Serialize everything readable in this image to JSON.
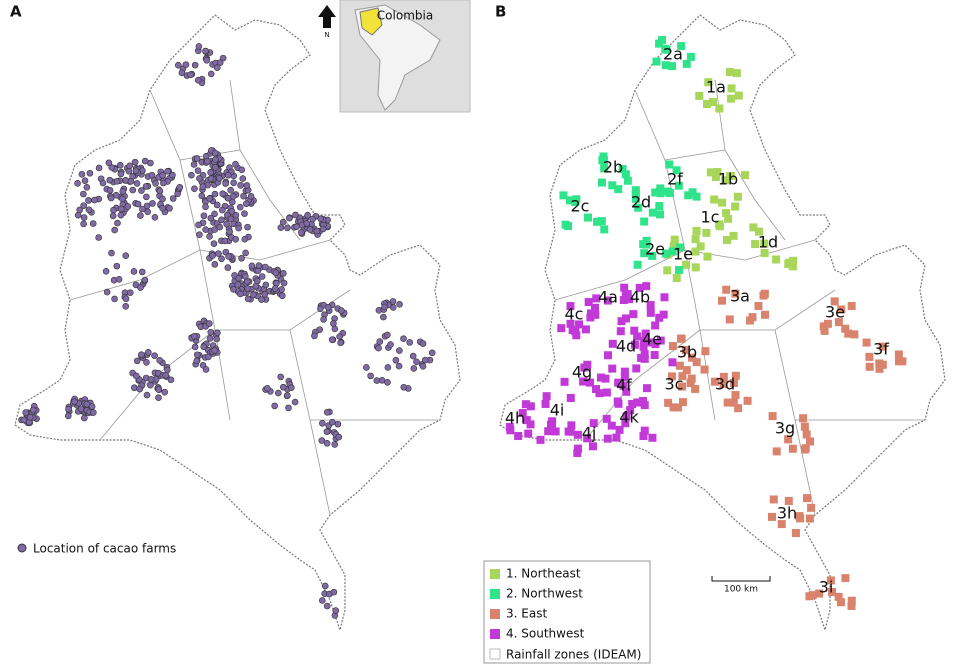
{
  "panel_a": {
    "label": "A",
    "inset_label": "Colombia",
    "north": "N",
    "legend": "Location of cacao farms"
  },
  "panel_b": {
    "label": "B",
    "scale": "100 km",
    "groups": [
      {
        "name": "1. Northeast",
        "color": "#a7d65a",
        "zones": [
          "1a",
          "1b",
          "1c",
          "1d",
          "1e"
        ]
      },
      {
        "name": "2. Northwest",
        "color": "#2fe38a",
        "zones": [
          "2a",
          "2b",
          "2c",
          "2d",
          "2e",
          "2f"
        ]
      },
      {
        "name": "3. East",
        "color": "#d9826c",
        "zones": [
          "3a",
          "3b",
          "3c",
          "3d",
          "3e",
          "3f",
          "3g",
          "3h",
          "3i"
        ]
      },
      {
        "name": "4. Southwest",
        "color": "#c13ad8",
        "zones": [
          "4a",
          "4b",
          "4c",
          "4d",
          "4e",
          "4f",
          "4g",
          "4h",
          "4i",
          "4j",
          "4k"
        ]
      }
    ],
    "rainfall_label": "Rainfall zones (IDEAM)"
  }
}
